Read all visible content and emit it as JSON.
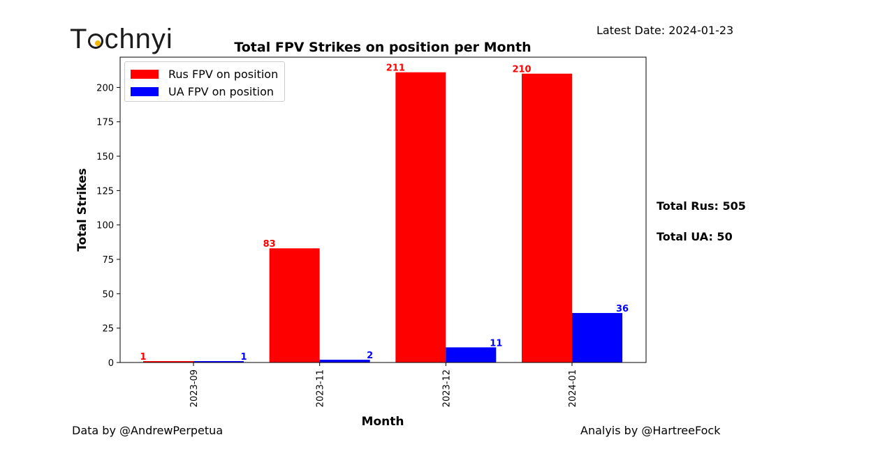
{
  "logo": {
    "part1": "T",
    "part2": "chnyi"
  },
  "latest_date": "Latest Date: 2024-01-23",
  "totals": {
    "rus": "Total Rus: 505",
    "ua": "Total UA: 50"
  },
  "credits": {
    "data": "Data by @AndrewPerpetua",
    "analysis": "Analyis by @HartreeFock"
  },
  "colors": {
    "rus": "#ff0000",
    "ua": "#0000ff"
  },
  "chart_data": {
    "type": "bar",
    "title": "Total FPV Strikes on position per Month",
    "xlabel": "Month",
    "ylabel": "Total Strikes",
    "categories": [
      "2023-09",
      "2023-11",
      "2023-12",
      "2024-01"
    ],
    "series": [
      {
        "name": "Rus FPV on position",
        "values": [
          1,
          83,
          211,
          210
        ],
        "color": "#ff0000"
      },
      {
        "name": "UA FPV on position",
        "values": [
          1,
          2,
          11,
          36
        ],
        "color": "#0000ff"
      }
    ],
    "yticks": [
      "0",
      "25",
      "50",
      "75",
      "100",
      "125",
      "150",
      "175",
      "200"
    ],
    "ylim": [
      0,
      222
    ],
    "legend": "top-left",
    "grid": false
  }
}
